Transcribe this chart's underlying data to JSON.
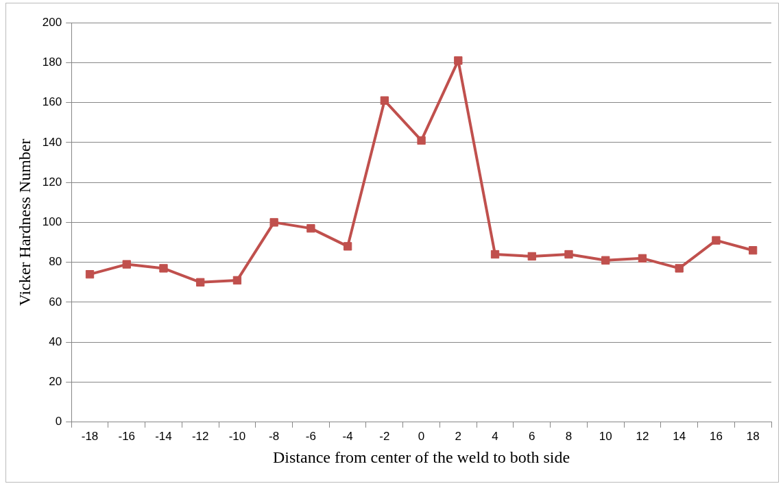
{
  "chart_data": {
    "type": "line",
    "xlabel": "Distance from center of the weld to both side",
    "ylabel": "Vicker Hardness Number",
    "categories": [
      "-18",
      "-16",
      "-14",
      "-12",
      "-10",
      "-8",
      "-6",
      "-4",
      "-2",
      "0",
      "2",
      "4",
      "6",
      "8",
      "10",
      "12",
      "14",
      "16",
      "18"
    ],
    "series": [
      {
        "color": "#c0504d",
        "values": [
          74,
          79,
          77,
          70,
          71,
          100,
          97,
          88,
          161,
          141,
          181,
          84,
          83,
          84,
          81,
          82,
          77,
          91,
          86
        ]
      }
    ],
    "ylim": [
      0,
      200
    ],
    "yticks": [
      0,
      20,
      40,
      60,
      80,
      100,
      120,
      140,
      160,
      180,
      200
    ],
    "grid": "y",
    "legend": false,
    "marker": "square",
    "line_style": "solid"
  }
}
